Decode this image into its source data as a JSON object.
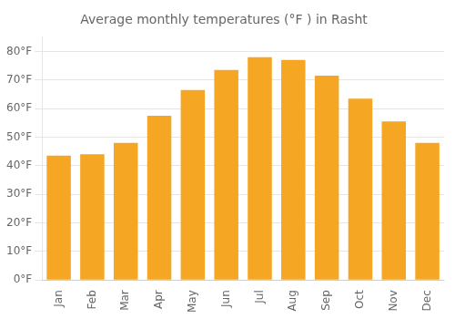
{
  "chart_data": {
    "type": "bar",
    "title": "Average monthly temperatures (°F ) in Rasht",
    "categories": [
      "Jan",
      "Feb",
      "Mar",
      "Apr",
      "May",
      "Jun",
      "Jul",
      "Aug",
      "Sep",
      "Oct",
      "Nov",
      "Dec"
    ],
    "values": [
      43.5,
      44.0,
      48.0,
      57.5,
      66.5,
      73.5,
      78.0,
      77.0,
      71.5,
      63.5,
      55.5,
      48.0
    ],
    "color": "#F5A623",
    "ylim": [
      0,
      85
    ],
    "yticks": [
      {
        "value": 0,
        "label": "0°F"
      },
      {
        "value": 10,
        "label": "10°F"
      },
      {
        "value": 20,
        "label": "20°F"
      },
      {
        "value": 30,
        "label": "30°F"
      },
      {
        "value": 40,
        "label": "40°F"
      },
      {
        "value": 50,
        "label": "50°F"
      },
      {
        "value": 60,
        "label": "60°F"
      },
      {
        "value": 70,
        "label": "70°F"
      },
      {
        "value": 80,
        "label": "80°F"
      }
    ],
    "grid": true
  }
}
